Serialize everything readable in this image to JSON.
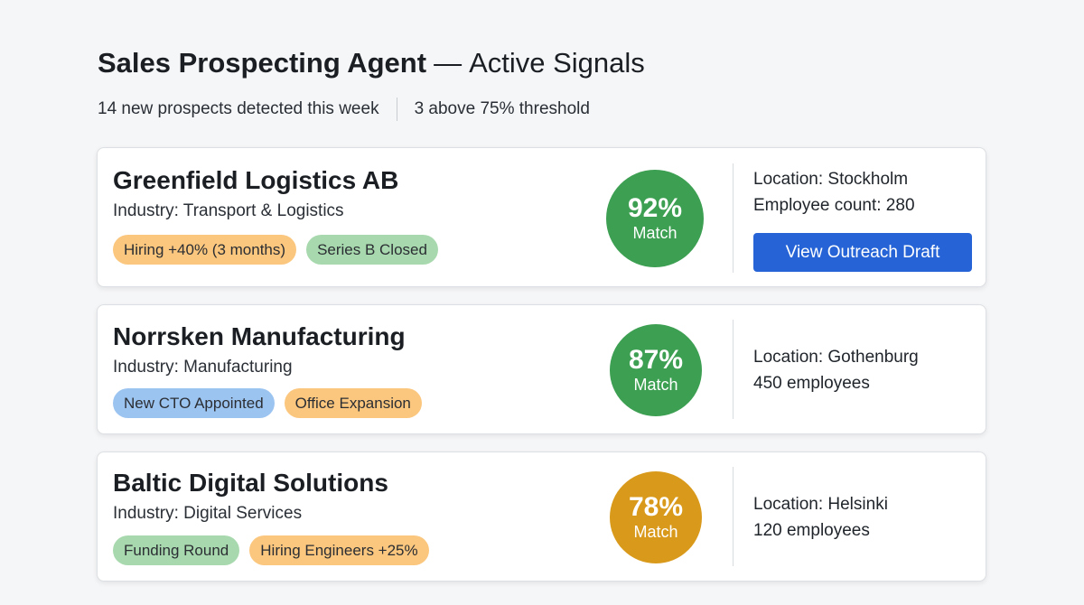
{
  "header": {
    "title_strong": "Sales Prospecting Agent",
    "title_separator": "—",
    "title_sub": "Active Signals",
    "summary_left": "14 new prospects detected this week",
    "summary_right": "3 above 75% threshold"
  },
  "colors": {
    "match_high": "#3c9f52",
    "match_medium": "#d99a1b",
    "button_primary": "#2563d6",
    "tag_orange": "#fbc67d",
    "tag_green": "#a8d9ae",
    "tag_blue": "#9cc4f1"
  },
  "prospects": [
    {
      "name": "Greenfield Logistics AB",
      "industry": "Industry: Transport & Logistics",
      "tags": [
        "Hiring +40% (3 months)",
        "Series B Closed"
      ],
      "match_value": 92,
      "match_percent": "92%",
      "match_label": "Match",
      "location": "Location: Stockholm",
      "employees": "Employee count: 280",
      "action_label": "View Outreach Draft"
    },
    {
      "name": "Norrsken Manufacturing",
      "industry": "Industry: Manufacturing",
      "tags": [
        "New CTO Appointed",
        "Office Expansion"
      ],
      "match_value": 87,
      "match_percent": "87%",
      "match_label": "Match",
      "location": "Location: Gothenburg",
      "employees": "450 employees"
    },
    {
      "name": "Baltic Digital Solutions",
      "industry": "Industry: Digital Services",
      "tags": [
        "Funding Round",
        "Hiring Engineers +25%"
      ],
      "match_value": 78,
      "match_percent": "78%",
      "match_label": "Match",
      "location": "Location: Helsinki",
      "employees": "120 employees"
    }
  ]
}
